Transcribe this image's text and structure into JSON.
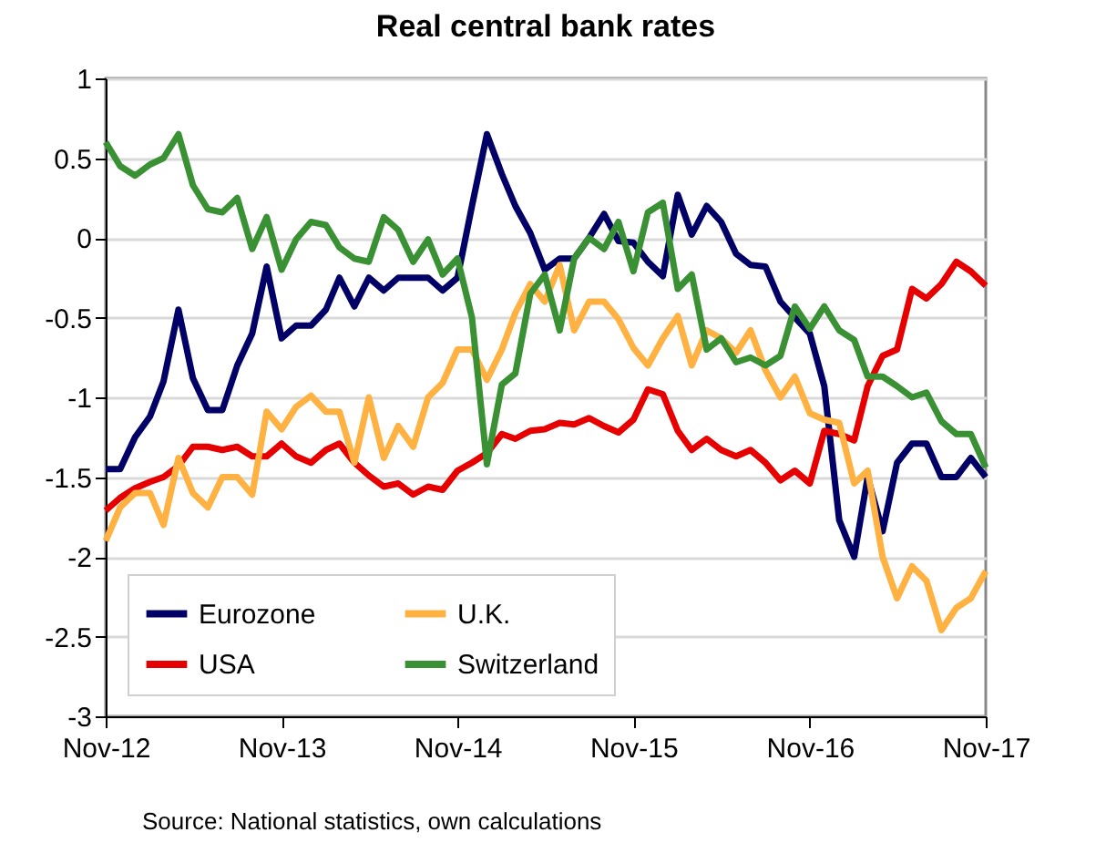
{
  "chart_data": {
    "type": "line",
    "title": "Real central bank rates",
    "x": [
      "2012-11",
      "2012-12",
      "2013-01",
      "2013-02",
      "2013-03",
      "2013-04",
      "2013-05",
      "2013-06",
      "2013-07",
      "2013-08",
      "2013-09",
      "2013-10",
      "2013-11",
      "2013-12",
      "2014-01",
      "2014-02",
      "2014-03",
      "2014-04",
      "2014-05",
      "2014-06",
      "2014-07",
      "2014-08",
      "2014-09",
      "2014-10",
      "2014-11",
      "2014-12",
      "2015-01",
      "2015-02",
      "2015-03",
      "2015-04",
      "2015-05",
      "2015-06",
      "2015-07",
      "2015-08",
      "2015-09",
      "2015-10",
      "2015-11",
      "2015-12",
      "2016-01",
      "2016-02",
      "2016-03",
      "2016-04",
      "2016-05",
      "2016-06",
      "2016-07",
      "2016-08",
      "2016-09",
      "2016-10",
      "2016-11",
      "2016-12",
      "2017-01",
      "2017-02",
      "2017-03",
      "2017-04",
      "2017-05",
      "2017-06",
      "2017-07",
      "2017-08",
      "2017-09",
      "2017-10",
      "2017-11"
    ],
    "series": [
      {
        "name": "Eurozone",
        "color": "#000066",
        "values": [
          -1.45,
          -1.45,
          -1.25,
          -1.12,
          -0.9,
          -0.45,
          -0.88,
          -1.08,
          -1.08,
          -0.8,
          -0.6,
          -0.18,
          -0.63,
          -0.55,
          -0.55,
          -0.45,
          -0.25,
          -0.43,
          -0.25,
          -0.33,
          -0.25,
          -0.25,
          -0.25,
          -0.33,
          -0.25,
          0.2,
          0.65,
          0.4,
          0.2,
          0.03,
          -0.2,
          -0.13,
          -0.13,
          0,
          0.15,
          -0.02,
          -0.03,
          -0.15,
          -0.24,
          0.27,
          0.02,
          0.2,
          0.1,
          -0.1,
          -0.17,
          -0.18,
          -0.4,
          -0.5,
          -0.6,
          -0.93,
          -1.77,
          -2.0,
          -1.5,
          -1.84,
          -1.41,
          -1.29,
          -1.29,
          -1.5,
          -1.5,
          -1.38,
          -1.5
        ]
      },
      {
        "name": "USA",
        "color": "#e60000",
        "values": [
          -1.71,
          -1.63,
          -1.57,
          -1.53,
          -1.5,
          -1.43,
          -1.31,
          -1.31,
          -1.33,
          -1.31,
          -1.37,
          -1.37,
          -1.29,
          -1.37,
          -1.41,
          -1.33,
          -1.29,
          -1.41,
          -1.49,
          -1.56,
          -1.54,
          -1.61,
          -1.56,
          -1.58,
          -1.46,
          -1.41,
          -1.35,
          -1.23,
          -1.26,
          -1.21,
          -1.2,
          -1.16,
          -1.17,
          -1.13,
          -1.18,
          -1.22,
          -1.14,
          -0.95,
          -0.98,
          -1.21,
          -1.33,
          -1.26,
          -1.33,
          -1.37,
          -1.33,
          -1.41,
          -1.52,
          -1.46,
          -1.54,
          -1.21,
          -1.23,
          -1.27,
          -0.93,
          -0.74,
          -0.7,
          -0.32,
          -0.38,
          -0.29,
          -0.15,
          -0.21,
          -0.3
        ]
      },
      {
        "name": "U.K.",
        "color": "#ffb142",
        "values": [
          -1.9,
          -1.69,
          -1.6,
          -1.6,
          -1.8,
          -1.38,
          -1.6,
          -1.69,
          -1.5,
          -1.5,
          -1.61,
          -1.09,
          -1.2,
          -1.06,
          -0.99,
          -1.09,
          -1.09,
          -1.41,
          -1.0,
          -1.38,
          -1.18,
          -1.31,
          -1.0,
          -0.91,
          -0.7,
          -0.7,
          -0.89,
          -0.7,
          -0.47,
          -0.29,
          -0.4,
          -0.17,
          -0.58,
          -0.4,
          -0.4,
          -0.51,
          -0.69,
          -0.8,
          -0.63,
          -0.49,
          -0.8,
          -0.58,
          -0.63,
          -0.72,
          -0.58,
          -0.83,
          -1.0,
          -0.87,
          -1.1,
          -1.14,
          -1.16,
          -1.54,
          -1.46,
          -2.0,
          -2.26,
          -2.06,
          -2.15,
          -2.46,
          -2.32,
          -2.26,
          -2.09
        ]
      },
      {
        "name": "Switzerland",
        "color": "#3a9134",
        "values": [
          0.6,
          0.45,
          0.39,
          0.46,
          0.5,
          0.65,
          0.33,
          0.18,
          0.16,
          0.25,
          -0.07,
          0.13,
          -0.2,
          -0.01,
          0.1,
          0.08,
          -0.06,
          -0.13,
          -0.15,
          0.13,
          0.05,
          -0.15,
          -0.01,
          -0.23,
          -0.13,
          -0.5,
          -1.42,
          -0.92,
          -0.85,
          -0.35,
          -0.23,
          -0.58,
          -0.13,
          0,
          -0.07,
          0.1,
          -0.21,
          0.16,
          0.22,
          -0.32,
          -0.23,
          -0.7,
          -0.63,
          -0.78,
          -0.75,
          -0.8,
          -0.74,
          -0.43,
          -0.57,
          -0.43,
          -0.58,
          -0.64,
          -0.87,
          -0.87,
          -0.93,
          -1.0,
          -0.97,
          -1.15,
          -1.23,
          -1.23,
          -1.44
        ]
      }
    ],
    "xlim": [
      "2012-11",
      "2017-11"
    ],
    "xticks": [
      {
        "value": "2012-11",
        "label": "Nov-12"
      },
      {
        "value": "2013-11",
        "label": "Nov-13"
      },
      {
        "value": "2014-11",
        "label": "Nov-14"
      },
      {
        "value": "2015-11",
        "label": "Nov-15"
      },
      {
        "value": "2016-11",
        "label": "Nov-16"
      },
      {
        "value": "2017-11",
        "label": "Nov-17"
      }
    ],
    "ylim": [
      -3,
      1
    ],
    "yticks": [
      -3,
      -2.5,
      -2,
      -1.5,
      -1,
      -0.5,
      0,
      0.5,
      1
    ],
    "grid": "y",
    "legend": "bottom left",
    "line_style": "solid",
    "marker": "none",
    "annotations": [
      "Source: National statistics, own calculations"
    ]
  }
}
